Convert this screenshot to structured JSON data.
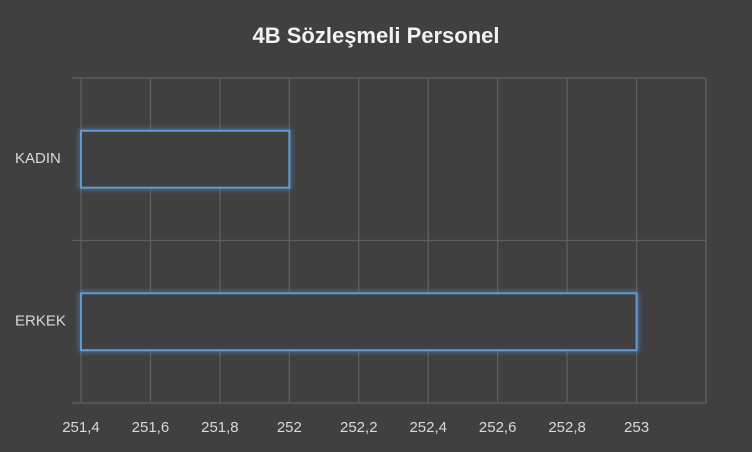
{
  "chart_data": {
    "type": "hbar",
    "title": "4B Sözleşmeli Personel",
    "categories": [
      "KADIN",
      "ERKEK"
    ],
    "values": [
      252,
      253
    ],
    "color": "#5b9bd5",
    "xlim": [
      251.4,
      253.2
    ],
    "xticks": [
      {
        "value": 251.4,
        "label": "251,4"
      },
      {
        "value": 251.6,
        "label": "251,6"
      },
      {
        "value": 251.8,
        "label": "251,8"
      },
      252,
      {
        "value": 252.2,
        "label": "252,2"
      },
      {
        "value": 252.4,
        "label": "252,4"
      },
      {
        "value": 252.6,
        "label": "252,6"
      },
      {
        "value": 252.8,
        "label": "252,8"
      },
      253
    ],
    "grid": true
  }
}
